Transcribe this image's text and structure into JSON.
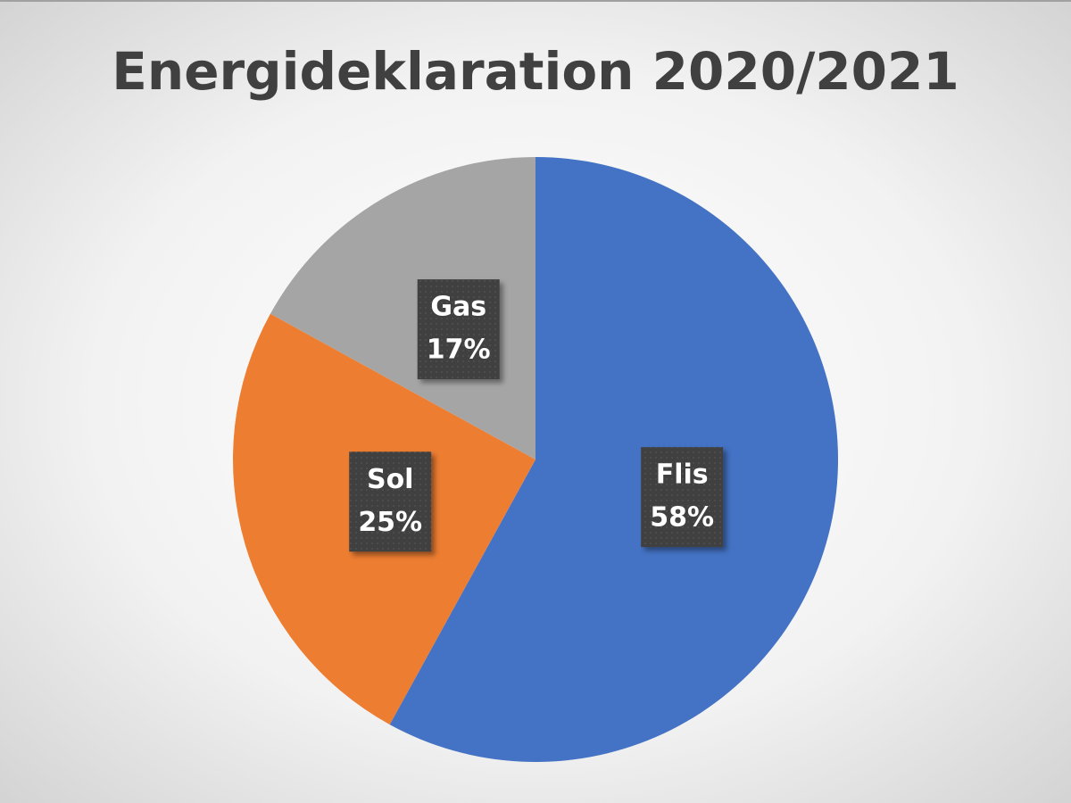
{
  "chart_data": {
    "type": "pie",
    "title": "Energideklaration 2020/2021",
    "categories": [
      "Flis",
      "Sol",
      "Gas"
    ],
    "values": [
      58,
      25,
      17
    ],
    "value_labels": [
      "58%",
      "25%",
      "17%"
    ],
    "colors": [
      "#4472c4",
      "#ed7d31",
      "#a5a5a5"
    ]
  }
}
